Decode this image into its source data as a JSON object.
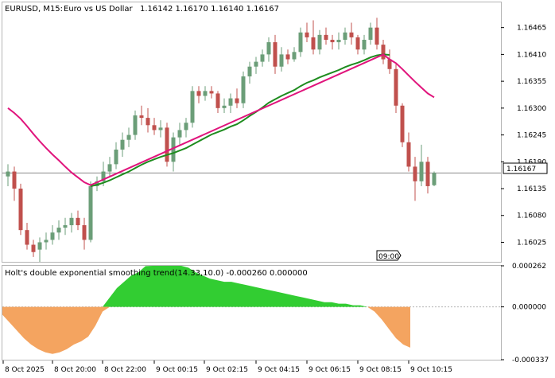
{
  "header": {
    "symbol_tf": "EURUSD, M15:",
    "description": "Euro vs US Dollar",
    "ohlc": "1.16142 1.16170 1.16140 1.16167"
  },
  "indicator": {
    "title": "Holt's double exponential smoothing trend(14.33,10.0) -0.000260 0.000000",
    "scale_labels": [
      "0.000262",
      "0.000000",
      "-0.000337"
    ]
  },
  "price_axis": {
    "labels": [
      "1.16465",
      "1.16410",
      "1.16355",
      "1.16300",
      "1.16245",
      "1.16190",
      "1.16135",
      "1.16080",
      "1.16025"
    ],
    "current_price": "1.16167"
  },
  "time_axis": {
    "labels": [
      "8 Oct 2025",
      "8 Oct 20:00",
      "8 Oct 22:00",
      "9 Oct 00:15",
      "9 Oct 02:15",
      "9 Oct 04:15",
      "9 Oct 06:15",
      "9 Oct 08:15",
      "9 Oct 10:15"
    ],
    "crosshair_label": "09:00"
  },
  "colors": {
    "bull": "#6b9e78",
    "bear": "#c0504d",
    "ma_fast": "#1e8c1e",
    "ma_slow": "#e0147c",
    "hist_pos": "#32cd32",
    "hist_neg": "#f4a460"
  },
  "chart_data": [
    {
      "type": "candlestick",
      "title": "EURUSD, M15",
      "y_axis_ticks": [
        1.16465,
        1.1641,
        1.16355,
        1.163,
        1.16245,
        1.1619,
        1.16135,
        1.1608,
        1.16025
      ],
      "ylim": [
        1.15985,
        1.16515
      ],
      "current_price": 1.16167,
      "candles": [
        {
          "o": 1.1616,
          "h": 1.16185,
          "l": 1.1614,
          "c": 1.1617
        },
        {
          "o": 1.1617,
          "h": 1.1618,
          "l": 1.1611,
          "c": 1.16135
        },
        {
          "o": 1.16135,
          "h": 1.16145,
          "l": 1.1604,
          "c": 1.1605
        },
        {
          "o": 1.1605,
          "h": 1.16065,
          "l": 1.1601,
          "c": 1.1602
        },
        {
          "o": 1.1602,
          "h": 1.1603,
          "l": 1.15995,
          "c": 1.16005
        },
        {
          "o": 1.1601,
          "h": 1.16035,
          "l": 1.15985,
          "c": 1.16025
        },
        {
          "o": 1.16025,
          "h": 1.16045,
          "l": 1.1601,
          "c": 1.1603
        },
        {
          "o": 1.1603,
          "h": 1.1606,
          "l": 1.1602,
          "c": 1.16045
        },
        {
          "o": 1.16045,
          "h": 1.1607,
          "l": 1.1603,
          "c": 1.16055
        },
        {
          "o": 1.16055,
          "h": 1.16075,
          "l": 1.1604,
          "c": 1.1606
        },
        {
          "o": 1.1606,
          "h": 1.16085,
          "l": 1.16045,
          "c": 1.16075
        },
        {
          "o": 1.16075,
          "h": 1.1609,
          "l": 1.1605,
          "c": 1.1606
        },
        {
          "o": 1.1606,
          "h": 1.16075,
          "l": 1.1601,
          "c": 1.1603
        },
        {
          "o": 1.1603,
          "h": 1.1615,
          "l": 1.16025,
          "c": 1.1614
        },
        {
          "o": 1.1614,
          "h": 1.1616,
          "l": 1.1613,
          "c": 1.1615
        },
        {
          "o": 1.1615,
          "h": 1.1619,
          "l": 1.1614,
          "c": 1.1617
        },
        {
          "o": 1.1617,
          "h": 1.162,
          "l": 1.1616,
          "c": 1.16185
        },
        {
          "o": 1.16185,
          "h": 1.1623,
          "l": 1.16175,
          "c": 1.16215
        },
        {
          "o": 1.16215,
          "h": 1.1625,
          "l": 1.162,
          "c": 1.16235
        },
        {
          "o": 1.16235,
          "h": 1.1626,
          "l": 1.1622,
          "c": 1.16245
        },
        {
          "o": 1.16245,
          "h": 1.16295,
          "l": 1.16235,
          "c": 1.16285
        },
        {
          "o": 1.16285,
          "h": 1.16305,
          "l": 1.16265,
          "c": 1.1628
        },
        {
          "o": 1.1628,
          "h": 1.163,
          "l": 1.1625,
          "c": 1.16265
        },
        {
          "o": 1.16265,
          "h": 1.1628,
          "l": 1.16245,
          "c": 1.16255
        },
        {
          "o": 1.16255,
          "h": 1.16275,
          "l": 1.1624,
          "c": 1.1626
        },
        {
          "o": 1.1626,
          "h": 1.1627,
          "l": 1.1618,
          "c": 1.1619
        },
        {
          "o": 1.1619,
          "h": 1.1625,
          "l": 1.1617,
          "c": 1.1624
        },
        {
          "o": 1.1624,
          "h": 1.1627,
          "l": 1.16225,
          "c": 1.16255
        },
        {
          "o": 1.16255,
          "h": 1.1628,
          "l": 1.1624,
          "c": 1.1627
        },
        {
          "o": 1.1627,
          "h": 1.16345,
          "l": 1.1626,
          "c": 1.16335
        },
        {
          "o": 1.16335,
          "h": 1.16345,
          "l": 1.1631,
          "c": 1.16325
        },
        {
          "o": 1.16325,
          "h": 1.16345,
          "l": 1.16315,
          "c": 1.16335
        },
        {
          "o": 1.16335,
          "h": 1.16345,
          "l": 1.1632,
          "c": 1.1633
        },
        {
          "o": 1.1633,
          "h": 1.16335,
          "l": 1.1629,
          "c": 1.163
        },
        {
          "o": 1.163,
          "h": 1.1632,
          "l": 1.1629,
          "c": 1.16305
        },
        {
          "o": 1.16305,
          "h": 1.1633,
          "l": 1.1629,
          "c": 1.1632
        },
        {
          "o": 1.1632,
          "h": 1.1634,
          "l": 1.163,
          "c": 1.1631
        },
        {
          "o": 1.1631,
          "h": 1.16375,
          "l": 1.163,
          "c": 1.16365
        },
        {
          "o": 1.16365,
          "h": 1.16395,
          "l": 1.1635,
          "c": 1.16385
        },
        {
          "o": 1.16385,
          "h": 1.16405,
          "l": 1.1637,
          "c": 1.16395
        },
        {
          "o": 1.16395,
          "h": 1.1642,
          "l": 1.16385,
          "c": 1.1641
        },
        {
          "o": 1.1641,
          "h": 1.16445,
          "l": 1.16395,
          "c": 1.16435
        },
        {
          "o": 1.16435,
          "h": 1.1645,
          "l": 1.1637,
          "c": 1.16385
        },
        {
          "o": 1.16385,
          "h": 1.16425,
          "l": 1.16375,
          "c": 1.1641
        },
        {
          "o": 1.1641,
          "h": 1.1642,
          "l": 1.1639,
          "c": 1.164
        },
        {
          "o": 1.164,
          "h": 1.16425,
          "l": 1.16395,
          "c": 1.16415
        },
        {
          "o": 1.16415,
          "h": 1.16465,
          "l": 1.16405,
          "c": 1.16455
        },
        {
          "o": 1.16455,
          "h": 1.16475,
          "l": 1.16435,
          "c": 1.16445
        },
        {
          "o": 1.16445,
          "h": 1.1648,
          "l": 1.1641,
          "c": 1.1642
        },
        {
          "o": 1.1642,
          "h": 1.1646,
          "l": 1.1641,
          "c": 1.1645
        },
        {
          "o": 1.1645,
          "h": 1.16465,
          "l": 1.1643,
          "c": 1.1644
        },
        {
          "o": 1.1644,
          "h": 1.1645,
          "l": 1.1642,
          "c": 1.16435
        },
        {
          "o": 1.16435,
          "h": 1.16455,
          "l": 1.1642,
          "c": 1.1644
        },
        {
          "o": 1.1644,
          "h": 1.16465,
          "l": 1.1643,
          "c": 1.16455
        },
        {
          "o": 1.16455,
          "h": 1.16475,
          "l": 1.1643,
          "c": 1.16445
        },
        {
          "o": 1.16445,
          "h": 1.1645,
          "l": 1.1641,
          "c": 1.1642
        },
        {
          "o": 1.1642,
          "h": 1.1645,
          "l": 1.1641,
          "c": 1.1644
        },
        {
          "o": 1.1644,
          "h": 1.16475,
          "l": 1.1643,
          "c": 1.16465
        },
        {
          "o": 1.16465,
          "h": 1.16485,
          "l": 1.1642,
          "c": 1.1643
        },
        {
          "o": 1.1643,
          "h": 1.1644,
          "l": 1.1639,
          "c": 1.164
        },
        {
          "o": 1.164,
          "h": 1.1642,
          "l": 1.1637,
          "c": 1.1638
        },
        {
          "o": 1.1638,
          "h": 1.1639,
          "l": 1.1629,
          "c": 1.16305
        },
        {
          "o": 1.16305,
          "h": 1.1631,
          "l": 1.1622,
          "c": 1.1623
        },
        {
          "o": 1.1623,
          "h": 1.1625,
          "l": 1.1617,
          "c": 1.1618
        },
        {
          "o": 1.1618,
          "h": 1.162,
          "l": 1.1611,
          "c": 1.1615
        },
        {
          "o": 1.1615,
          "h": 1.16225,
          "l": 1.1614,
          "c": 1.1619
        },
        {
          "o": 1.1619,
          "h": 1.162,
          "l": 1.16125,
          "c": 1.1614
        },
        {
          "o": 1.16142,
          "h": 1.1617,
          "l": 1.1614,
          "c": 1.16167
        }
      ],
      "series": [
        {
          "name": "ma_fast",
          "values": [
            null,
            null,
            null,
            null,
            null,
            null,
            null,
            null,
            null,
            null,
            null,
            null,
            null,
            1.1614,
            1.16143,
            1.16147,
            1.16152,
            1.16158,
            1.16164,
            1.1617,
            1.16177,
            1.16184,
            1.1619,
            1.16195,
            1.162,
            1.16204,
            1.16208,
            1.16213,
            1.16218,
            1.16225,
            1.16232,
            1.16239,
            1.16246,
            1.16251,
            1.16256,
            1.16262,
            1.16267,
            1.16275,
            1.16284,
            1.16292,
            1.16301,
            1.16311,
            1.16318,
            1.16325,
            1.16331,
            1.16337,
            1.16345,
            1.16352,
            1.16357,
            1.16363,
            1.16368,
            1.16373,
            1.16378,
            1.16384,
            1.16389,
            1.16393,
            1.16398,
            1.16404,
            1.16408,
            1.1641,
            1.16409
          ]
        },
        {
          "name": "ma_slow",
          "values": [
            1.163,
            1.1629,
            1.16278,
            1.16263,
            1.16247,
            1.16232,
            1.16218,
            1.16205,
            1.16193,
            1.1618,
            1.16168,
            1.16158,
            1.16148,
            1.16142,
            null,
            null,
            null,
            null,
            null,
            null,
            null,
            null,
            null,
            null,
            null,
            null,
            null,
            null,
            null,
            null,
            null,
            null,
            null,
            null,
            null,
            null,
            null,
            null,
            null,
            null,
            null,
            null,
            null,
            null,
            null,
            null,
            null,
            null,
            null,
            null,
            null,
            null,
            null,
            null,
            null,
            null,
            null,
            null,
            null,
            1.1641,
            1.164,
            1.16392,
            1.1638,
            1.16367,
            1.16354,
            1.16342,
            1.1633,
            1.16322
          ]
        }
      ]
    },
    {
      "type": "area",
      "title": "Holt's double exponential smoothing trend(14.33,10.0)",
      "ylim": [
        -0.000337,
        0.000262
      ],
      "values": [
        -5e-05,
        -0.0001,
        -0.00015,
        -0.0002,
        -0.00024,
        -0.00027,
        -0.00029,
        -0.0003,
        -0.00029,
        -0.00027,
        -0.00024,
        -0.00022,
        -0.00019,
        -0.00012,
        -3e-05,
        6e-05,
        0.00012,
        0.00016,
        0.0002,
        0.00022,
        0.00026,
        0.000262,
        0.000262,
        0.000262,
        0.000262,
        0.000262,
        0.00025,
        0.00022,
        0.0002,
        0.00018,
        0.00017,
        0.00016,
        0.00016,
        0.00015,
        0.00014,
        0.00013,
        0.00012,
        0.00011,
        0.0001,
        9e-05,
        8e-05,
        7e-05,
        6e-05,
        5e-05,
        4e-05,
        3e-05,
        3e-05,
        2e-05,
        2e-05,
        1e-05,
        1e-05,
        0.0,
        -3e-05,
        -8e-05,
        -0.00014,
        -0.0002,
        -0.00024,
        -0.00026
      ]
    }
  ]
}
